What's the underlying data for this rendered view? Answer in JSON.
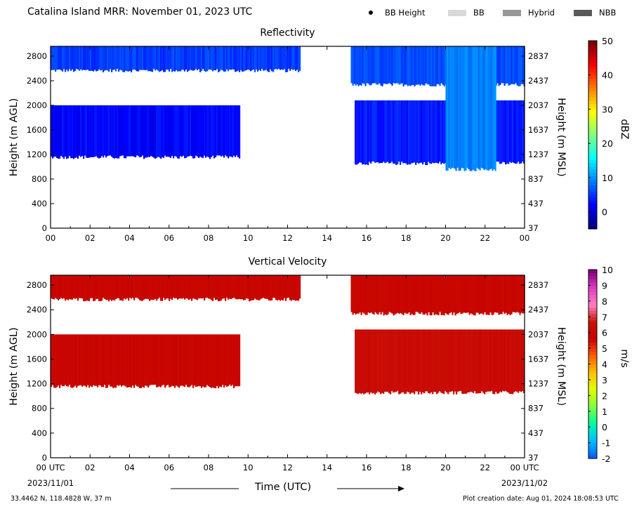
{
  "header": {
    "title": "Catalina Island MRR:  November 01, 2023 UTC",
    "legend": [
      {
        "label": "BB Height",
        "marker": "dot",
        "color": "#000000"
      },
      {
        "label": "BB",
        "marker": "swatch",
        "color": "#d9d9d9"
      },
      {
        "label": "Hybrid",
        "marker": "swatch",
        "color": "#969696"
      },
      {
        "label": "NBB",
        "marker": "swatch",
        "color": "#595959"
      }
    ]
  },
  "chart_data": [
    {
      "type": "heatmap",
      "title": "Reflectivity",
      "xlabel": "",
      "ylabel": "Height (m AGL)",
      "ylabel_right": "Height (m MSL)",
      "x_ticks": [
        "00",
        "02",
        "04",
        "06",
        "08",
        "10",
        "12",
        "14",
        "16",
        "18",
        "20",
        "22",
        "00"
      ],
      "xlim": [
        0,
        24
      ],
      "y_ticks_left": [
        "0",
        "400",
        "800",
        "1200",
        "1600",
        "2000",
        "2400",
        "2800"
      ],
      "y_ticks_right": [
        "37",
        "437",
        "837",
        "1237",
        "1637",
        "2037",
        "2437",
        "2837"
      ],
      "ylim": [
        0,
        2960
      ],
      "colorbar": {
        "label": "dBZ",
        "range": [
          -5,
          50
        ],
        "ticks": [
          "0",
          "10",
          "20",
          "30",
          "40",
          "50"
        ],
        "colormap": [
          "#00007f",
          "#0000ff",
          "#007fff",
          "#00ffff",
          "#7fff7f",
          "#ffff00",
          "#ff7f00",
          "#ff0000",
          "#7f0000"
        ]
      },
      "echo_regions": [
        {
          "t_start": 0.0,
          "t_end": 12.6,
          "h_bottom": 2560,
          "h_top": 2960,
          "dbz": 5
        },
        {
          "t_start": 0.0,
          "t_end": 9.6,
          "h_bottom": 1150,
          "h_top": 2000,
          "dbz": 2
        },
        {
          "t_start": 15.2,
          "t_end": 24.0,
          "h_bottom": 2330,
          "h_top": 2960,
          "dbz": 6
        },
        {
          "t_start": 15.4,
          "t_end": 24.0,
          "h_bottom": 1050,
          "h_top": 2080,
          "dbz": 3
        },
        {
          "t_start": 20.0,
          "t_end": 22.5,
          "h_bottom": 950,
          "h_top": 2960,
          "dbz": 9
        }
      ]
    },
    {
      "type": "heatmap",
      "title": "Vertical Velocity",
      "xlabel": "Time (UTC)",
      "ylabel": "Height (m AGL)",
      "ylabel_right": "Height (m MSL)",
      "x_ticks": [
        "00 UTC",
        "02",
        "04",
        "06",
        "08",
        "10",
        "12",
        "14",
        "16",
        "18",
        "20",
        "22",
        "00 UTC"
      ],
      "x_dates": [
        "2023/11/01",
        "2023/11/02"
      ],
      "xlim": [
        0,
        24
      ],
      "y_ticks_left": [
        "0",
        "400",
        "800",
        "1200",
        "1600",
        "2000",
        "2400",
        "2800"
      ],
      "y_ticks_right": [
        "37",
        "437",
        "837",
        "1237",
        "1637",
        "2037",
        "2437",
        "2837"
      ],
      "ylim": [
        0,
        2960
      ],
      "colorbar": {
        "label": "m/s",
        "range": [
          -2,
          10
        ],
        "ticks": [
          "-2",
          "-1",
          "0",
          "1",
          "2",
          "3",
          "4",
          "5",
          "6",
          "7",
          "8",
          "9",
          "10"
        ],
        "colormap": [
          "#0060ff",
          "#00c0ff",
          "#00ffa0",
          "#80ff40",
          "#e0ff00",
          "#ffc000",
          "#ff6000",
          "#c80000",
          "#c81400",
          "#ff80c0",
          "#e040c0",
          "#800080"
        ]
      },
      "echo_regions": [
        {
          "t_start": 0.0,
          "t_end": 12.6,
          "h_bottom": 2560,
          "h_top": 2960,
          "velocity": 6
        },
        {
          "t_start": 0.0,
          "t_end": 9.6,
          "h_bottom": 1150,
          "h_top": 2000,
          "velocity": 6
        },
        {
          "t_start": 15.2,
          "t_end": 24.0,
          "h_bottom": 2330,
          "h_top": 2960,
          "velocity": 6
        },
        {
          "t_start": 15.4,
          "t_end": 24.0,
          "h_bottom": 1050,
          "h_top": 2080,
          "velocity": 6
        }
      ]
    }
  ],
  "footer": {
    "location": "33.4462 N, 118.4828 W, 37 m",
    "creation": "Plot creation date: Aug 01, 2024 18:08:53 UTC"
  }
}
